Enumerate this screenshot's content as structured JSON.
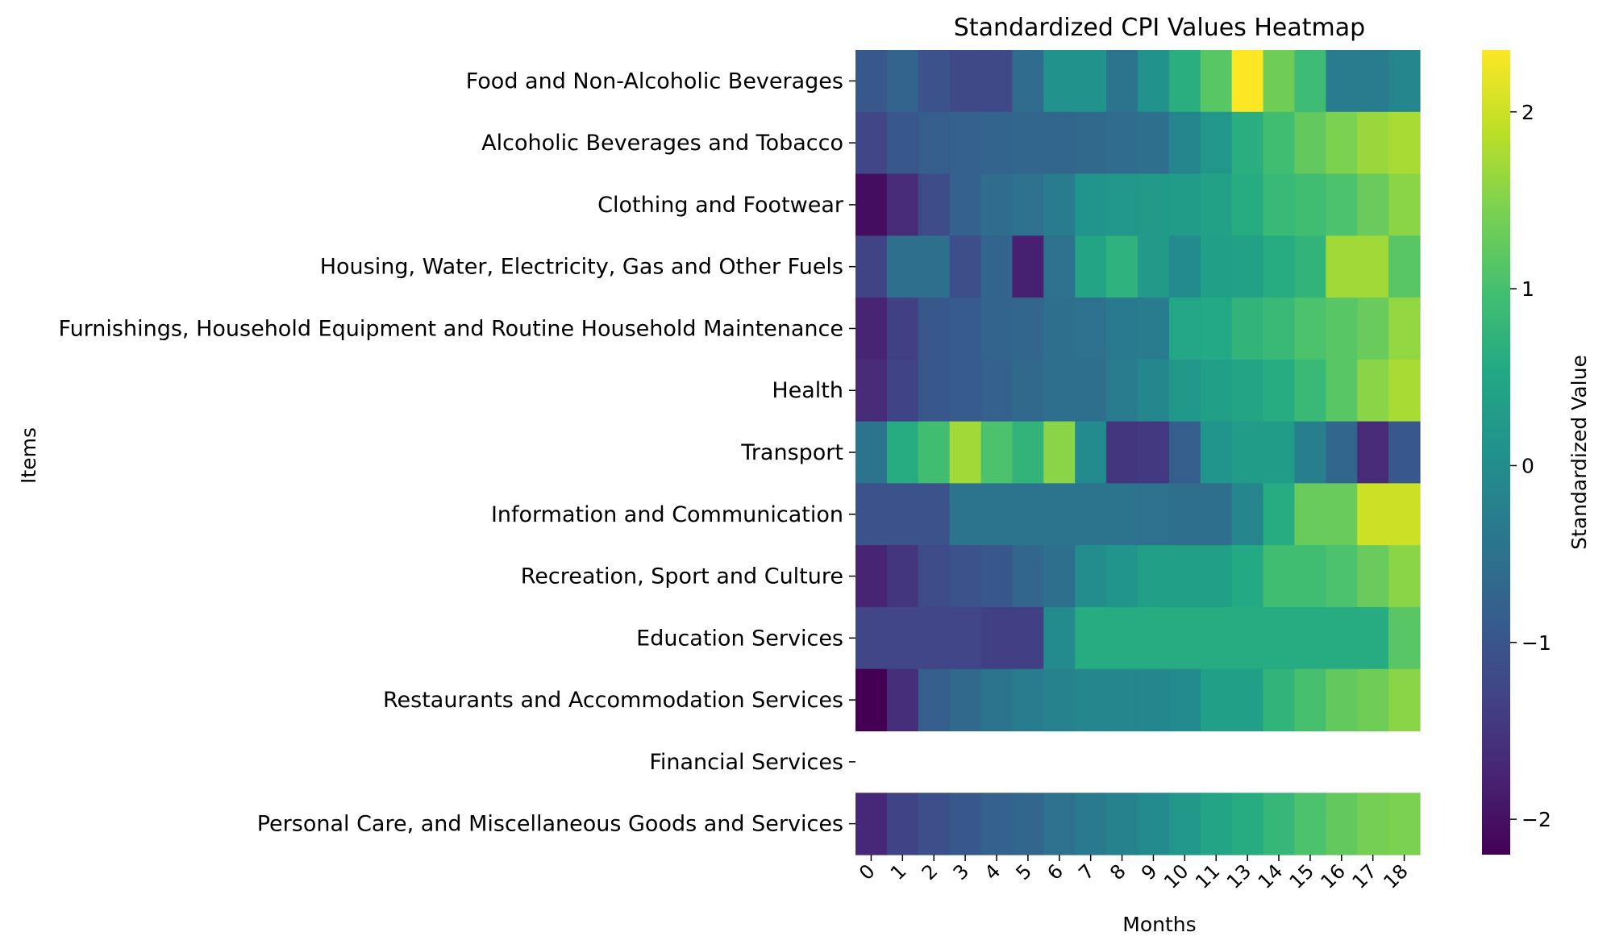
{
  "chart_data": {
    "type": "heatmap",
    "title": "Standardized CPI Values Heatmap",
    "xlabel": "Months",
    "ylabel": "Items",
    "x": [
      "0",
      "1",
      "2",
      "3",
      "4",
      "5",
      "6",
      "7",
      "8",
      "9",
      "10",
      "11",
      "13",
      "14",
      "15",
      "16",
      "17",
      "18"
    ],
    "y": [
      "Food and Non-Alcoholic Beverages",
      "Alcoholic Beverages and Tobacco",
      "Clothing and Footwear",
      "Housing, Water, Electricity, Gas and Other Fuels",
      "Furnishings, Household Equipment and Routine Household Maintenance",
      "Health",
      "Transport",
      "Information and Communication",
      "Recreation, Sport and Culture",
      "Education Services",
      "Restaurants and Accommodation Services",
      "Financial Services",
      "Personal Care, and Miscellaneous Goods and Services"
    ],
    "values": [
      [
        -0.95,
        -0.75,
        -1.05,
        -1.2,
        -1.2,
        -0.6,
        0.1,
        0.1,
        -0.45,
        0.1,
        0.65,
        1.15,
        2.35,
        1.35,
        0.9,
        -0.3,
        -0.3,
        -0.15
      ],
      [
        -1.25,
        -0.95,
        -0.85,
        -0.8,
        -0.75,
        -0.7,
        -0.7,
        -0.65,
        -0.6,
        -0.55,
        -0.15,
        0.2,
        0.65,
        0.95,
        1.25,
        1.45,
        1.65,
        1.75
      ],
      [
        -2.05,
        -1.65,
        -1.15,
        -0.8,
        -0.6,
        -0.5,
        -0.3,
        0.15,
        0.2,
        0.25,
        0.3,
        0.4,
        0.6,
        0.85,
        0.95,
        1.05,
        1.3,
        1.55
      ],
      [
        -1.3,
        -0.55,
        -0.55,
        -1.1,
        -0.75,
        -1.8,
        -0.5,
        0.45,
        0.7,
        0.25,
        -0.05,
        0.35,
        0.4,
        0.6,
        0.75,
        1.7,
        1.7,
        1.15
      ],
      [
        -1.75,
        -1.35,
        -0.95,
        -0.9,
        -0.75,
        -0.7,
        -0.55,
        -0.5,
        -0.35,
        -0.3,
        0.5,
        0.55,
        0.75,
        0.85,
        1.05,
        1.15,
        1.3,
        1.6
      ],
      [
        -1.65,
        -1.3,
        -0.95,
        -0.9,
        -0.8,
        -0.65,
        -0.55,
        -0.55,
        -0.3,
        -0.1,
        0.2,
        0.35,
        0.45,
        0.6,
        0.85,
        1.15,
        1.55,
        1.75
      ],
      [
        -0.45,
        0.6,
        0.95,
        1.7,
        1.05,
        0.75,
        1.55,
        -0.05,
        -1.5,
        -1.45,
        -0.85,
        0.15,
        0.3,
        0.3,
        -0.25,
        -0.7,
        -1.65,
        -0.95
      ],
      [
        -1.05,
        -1.05,
        -1.05,
        -0.45,
        -0.45,
        -0.45,
        -0.45,
        -0.45,
        -0.45,
        -0.5,
        -0.55,
        -0.55,
        -0.15,
        0.6,
        1.3,
        1.3,
        2.0,
        2.0
      ],
      [
        -1.75,
        -1.5,
        -1.15,
        -1.05,
        -0.95,
        -0.7,
        -0.55,
        0.0,
        0.15,
        0.35,
        0.35,
        0.35,
        0.55,
        0.95,
        0.95,
        1.05,
        1.3,
        1.55
      ],
      [
        -1.25,
        -1.25,
        -1.25,
        -1.25,
        -1.35,
        -1.35,
        -0.05,
        0.6,
        0.6,
        0.6,
        0.6,
        0.6,
        0.6,
        0.6,
        0.6,
        0.6,
        0.6,
        1.15
      ],
      [
        -2.2,
        -1.6,
        -0.85,
        -0.65,
        -0.45,
        -0.3,
        -0.2,
        -0.15,
        -0.15,
        -0.1,
        -0.05,
        0.35,
        0.35,
        0.75,
        1.0,
        1.25,
        1.35,
        1.55
      ],
      [
        null,
        null,
        null,
        null,
        null,
        null,
        null,
        null,
        null,
        null,
        null,
        null,
        null,
        null,
        null,
        null,
        null,
        null
      ],
      [
        -1.7,
        -1.3,
        -1.1,
        -0.95,
        -0.8,
        -0.7,
        -0.5,
        -0.35,
        -0.2,
        -0.05,
        0.2,
        0.45,
        0.6,
        0.8,
        1.05,
        1.25,
        1.4,
        1.45
      ]
    ],
    "vmin": -2.2,
    "vmax": 2.35,
    "colormap": "viridis",
    "colorbar": {
      "label": "Standardized Value",
      "ticks": [
        -2,
        -1,
        0,
        1,
        2
      ],
      "tick_labels": [
        "−2",
        "−1",
        "0",
        "1",
        "2"
      ]
    },
    "grid": false,
    "legend": "colorbar-right"
  }
}
